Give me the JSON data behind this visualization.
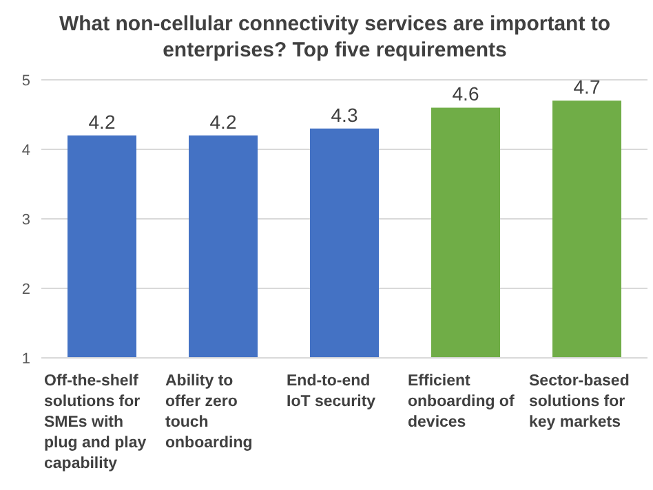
{
  "chart_data": {
    "type": "bar",
    "title": "What non-cellular connectivity services are important to enterprises? Top five requirements",
    "categories": [
      "Off-the-shelf solutions for SMEs with plug and play capability",
      "Ability to offer zero touch onboarding",
      "End-to-end IoT security",
      "Efficient onboarding of devices",
      "Sector-based solutions for key markets"
    ],
    "values": [
      4.2,
      4.2,
      4.3,
      4.6,
      4.7
    ],
    "colors": [
      "#4472c4",
      "#4472c4",
      "#4472c4",
      "#70ad47",
      "#70ad47"
    ],
    "ylim": [
      1,
      5
    ],
    "yticks": [
      1,
      2,
      3,
      4,
      5
    ],
    "grid": "y",
    "data_labels": true
  }
}
